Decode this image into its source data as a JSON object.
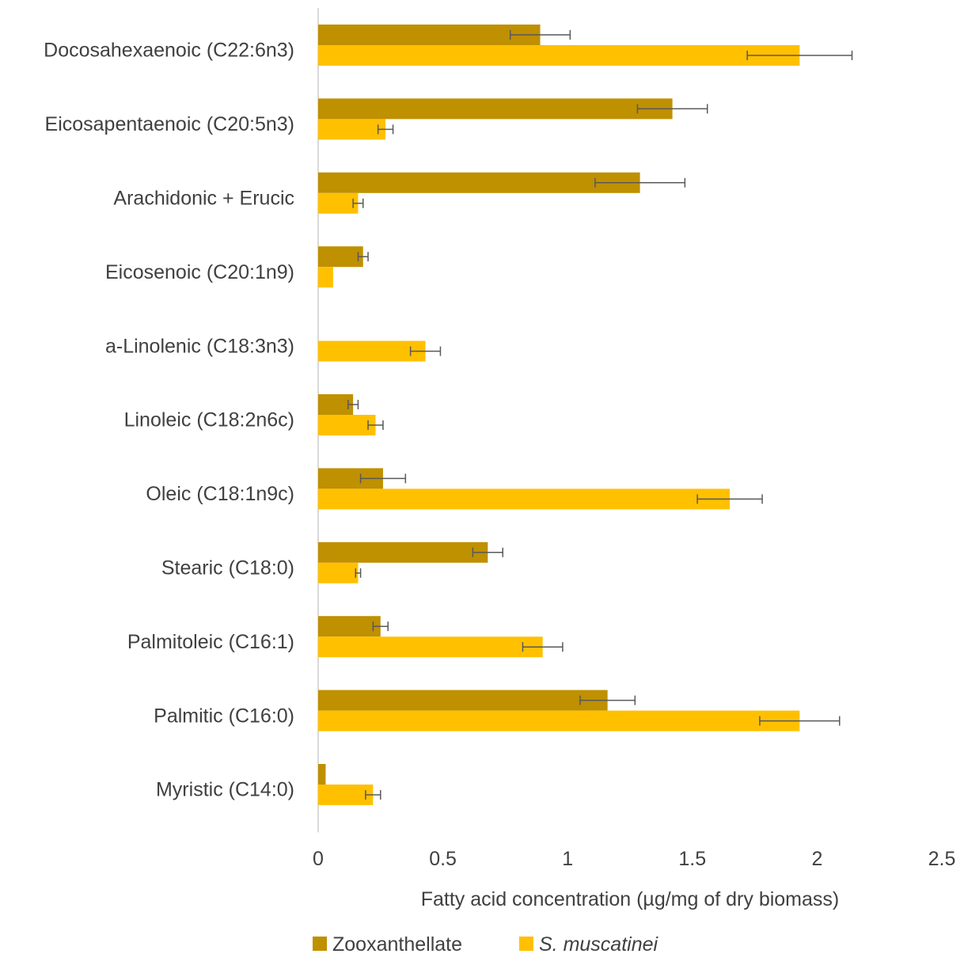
{
  "chart_data": {
    "type": "bar",
    "orientation": "horizontal",
    "xlabel": "Fatty acid concentration (µg/mg of dry biomass)",
    "xlim": [
      0,
      2.5
    ],
    "xticks": [
      0,
      0.5,
      1,
      1.5,
      2,
      2.5
    ],
    "xtick_labels": [
      "0",
      "0.5",
      "1",
      "1.5",
      "2",
      "2.5"
    ],
    "grid": false,
    "legend_position": "bottom",
    "categories": [
      "Docosahexaenoic (C22:6n3)",
      "Eicosapentaenoic (C20:5n3)",
      "Arachidonic + Erucic",
      "Eicosenoic (C20:1n9)",
      "a-Linolenic (C18:3n3)",
      "Linoleic (C18:2n6c)",
      "Oleic (C18:1n9c)",
      "Stearic (C18:0)",
      "Palmitoleic (C16:1)",
      "Palmitic (C16:0)",
      "Myristic (C14:0)"
    ],
    "series": [
      {
        "name": "Zooxanthellate",
        "italic": false,
        "color": "#BF9000",
        "values": [
          0.89,
          1.42,
          1.29,
          0.18,
          0.0,
          0.14,
          0.26,
          0.68,
          0.25,
          1.16,
          0.03
        ],
        "errors": [
          0.12,
          0.14,
          0.18,
          0.02,
          0.0,
          0.02,
          0.09,
          0.06,
          0.03,
          0.11,
          0.0
        ]
      },
      {
        "name": "S. muscatinei",
        "italic": true,
        "color": "#FFC000",
        "values": [
          1.93,
          0.27,
          0.16,
          0.06,
          0.43,
          0.23,
          1.65,
          0.16,
          0.9,
          1.93,
          0.22
        ],
        "errors": [
          0.21,
          0.03,
          0.02,
          0.0,
          0.06,
          0.03,
          0.13,
          0.01,
          0.08,
          0.16,
          0.03
        ]
      }
    ]
  }
}
